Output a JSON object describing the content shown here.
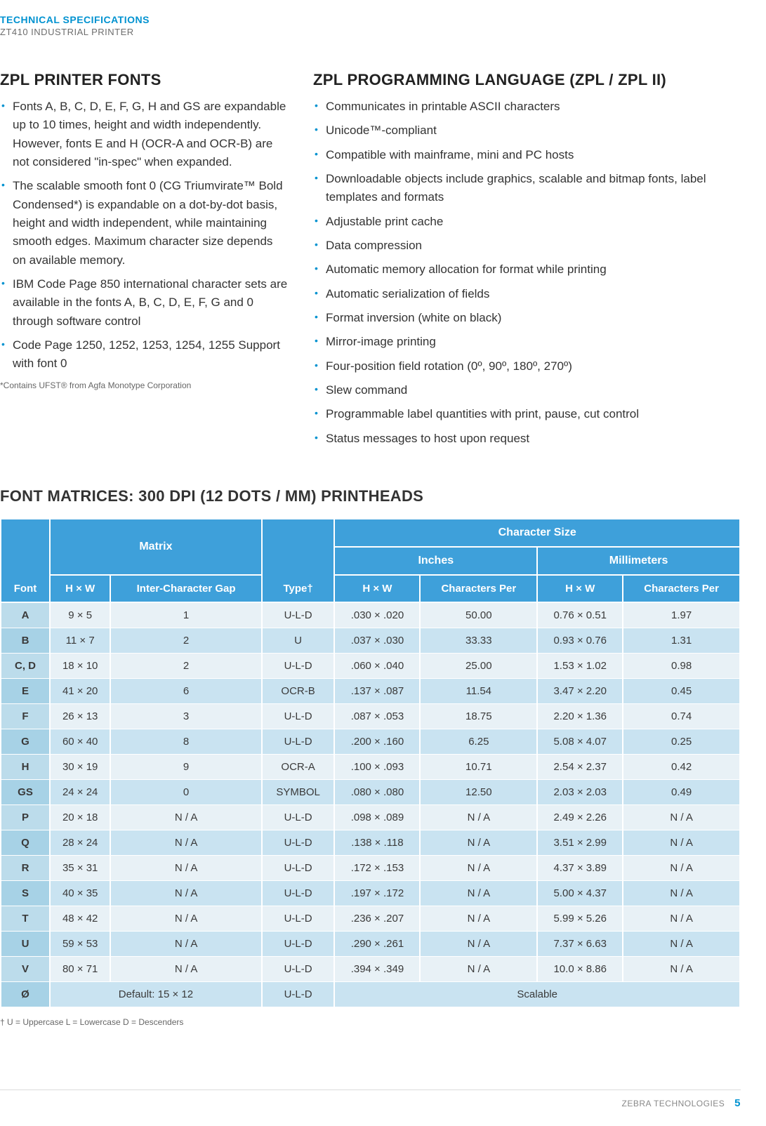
{
  "header": {
    "title": "TECHNICAL SPECIFICATIONS",
    "subtitle": "ZT410 INDUSTRIAL PRINTER"
  },
  "left_section": {
    "title": "ZPL PRINTER FONTS",
    "items": [
      "Fonts A, B, C, D, E, F, G, H and GS are expandable up to 10 times, height and width independently. However, fonts E and H (OCR-A and OCR-B) are not considered \"in-spec\" when expanded.",
      "The scalable smooth font 0 (CG Triumvirate™ Bold Condensed*) is expandable on a dot-by-dot basis, height and width independent, while maintaining smooth edges. Maximum character size depends on available memory.",
      "IBM Code Page 850 international character sets are available in the fonts A, B, C, D, E, F, G and 0 through software control",
      "Code Page 1250, 1252, 1253, 1254, 1255 Support with font 0"
    ],
    "footnote": "*Contains UFST® from Agfa Monotype Corporation"
  },
  "right_section": {
    "title": "ZPL PROGRAMMING LANGUAGE (ZPL / ZPL II)",
    "items": [
      "Communicates in printable ASCII characters",
      "Unicode™-compliant",
      "Compatible with mainframe, mini and PC hosts",
      "Downloadable objects include graphics, scalable and bitmap fonts, label templates and formats",
      "Adjustable print cache",
      "Data compression",
      "Automatic memory allocation for format while printing",
      "Automatic serialization of fields",
      "Format inversion (white on black)",
      "Mirror-image printing",
      "Four-position field rotation (0º, 90º, 180º, 270º)",
      "Slew command",
      "Programmable label quantities with print, pause, cut control",
      "Status messages to host upon request"
    ]
  },
  "matrices": {
    "title": "FONT MATRICES: 300 DPI (12 DOTS / MM) PRINTHEADS",
    "head": {
      "font": "Font",
      "matrix": "Matrix",
      "hxw": "H × W",
      "gap": "Inter-Character Gap",
      "type": "Type†",
      "charsize": "Character Size",
      "inches": "Inches",
      "mm": "Millimeters",
      "cper": "Characters Per"
    },
    "rows": [
      {
        "font": "A",
        "hxw": "9 × 5",
        "gap": "1",
        "type": "U-L-D",
        "in_hxw": ".030 × .020",
        "in_cper": "50.00",
        "mm_hxw": "0.76 × 0.51",
        "mm_cper": "1.97"
      },
      {
        "font": "B",
        "hxw": "11 × 7",
        "gap": "2",
        "type": "U",
        "in_hxw": ".037 × .030",
        "in_cper": "33.33",
        "mm_hxw": "0.93 × 0.76",
        "mm_cper": "1.31"
      },
      {
        "font": "C, D",
        "hxw": "18 × 10",
        "gap": "2",
        "type": "U-L-D",
        "in_hxw": ".060 × .040",
        "in_cper": "25.00",
        "mm_hxw": "1.53 × 1.02",
        "mm_cper": "0.98"
      },
      {
        "font": "E",
        "hxw": "41 × 20",
        "gap": "6",
        "type": "OCR-B",
        "in_hxw": ".137 × .087",
        "in_cper": "11.54",
        "mm_hxw": "3.47 × 2.20",
        "mm_cper": "0.45"
      },
      {
        "font": "F",
        "hxw": "26 × 13",
        "gap": "3",
        "type": "U-L-D",
        "in_hxw": ".087 × .053",
        "in_cper": "18.75",
        "mm_hxw": "2.20 × 1.36",
        "mm_cper": "0.74"
      },
      {
        "font": "G",
        "hxw": "60 × 40",
        "gap": "8",
        "type": "U-L-D",
        "in_hxw": ".200 × .160",
        "in_cper": "6.25",
        "mm_hxw": "5.08 × 4.07",
        "mm_cper": "0.25"
      },
      {
        "font": "H",
        "hxw": "30 × 19",
        "gap": "9",
        "type": "OCR-A",
        "in_hxw": ".100 × .093",
        "in_cper": "10.71",
        "mm_hxw": "2.54 × 2.37",
        "mm_cper": "0.42"
      },
      {
        "font": "GS",
        "hxw": "24 × 24",
        "gap": "0",
        "type": "SYMBOL",
        "in_hxw": ".080 × .080",
        "in_cper": "12.50",
        "mm_hxw": "2.03 × 2.03",
        "mm_cper": "0.49"
      },
      {
        "font": "P",
        "hxw": "20 × 18",
        "gap": "N / A",
        "type": "U-L-D",
        "in_hxw": ".098 × .089",
        "in_cper": "N / A",
        "mm_hxw": "2.49 × 2.26",
        "mm_cper": "N / A"
      },
      {
        "font": "Q",
        "hxw": "28 × 24",
        "gap": "N / A",
        "type": "U-L-D",
        "in_hxw": ".138 × .118",
        "in_cper": "N / A",
        "mm_hxw": "3.51 × 2.99",
        "mm_cper": "N / A"
      },
      {
        "font": "R",
        "hxw": "35 × 31",
        "gap": "N / A",
        "type": "U-L-D",
        "in_hxw": ".172 × .153",
        "in_cper": "N / A",
        "mm_hxw": "4.37 × 3.89",
        "mm_cper": "N / A"
      },
      {
        "font": "S",
        "hxw": "40 × 35",
        "gap": "N / A",
        "type": "U-L-D",
        "in_hxw": ".197 × .172",
        "in_cper": "N / A",
        "mm_hxw": "5.00 × 4.37",
        "mm_cper": "N / A"
      },
      {
        "font": "T",
        "hxw": "48 × 42",
        "gap": "N / A",
        "type": "U-L-D",
        "in_hxw": ".236 × .207",
        "in_cper": "N / A",
        "mm_hxw": "5.99 × 5.26",
        "mm_cper": "N / A"
      },
      {
        "font": "U",
        "hxw": "59 × 53",
        "gap": "N / A",
        "type": "U-L-D",
        "in_hxw": ".290 × .261",
        "in_cper": "N / A",
        "mm_hxw": "7.37 × 6.63",
        "mm_cper": "N / A"
      },
      {
        "font": "V",
        "hxw": "80 × 71",
        "gap": "N / A",
        "type": "U-L-D",
        "in_hxw": ".394 × .349",
        "in_cper": "N / A",
        "mm_hxw": "10.0 × 8.86",
        "mm_cper": "N / A"
      }
    ],
    "last_row": {
      "font": "Ø",
      "matrix_span": "Default: 15 × 12",
      "type": "U-L-D",
      "charsize_span": "Scalable"
    },
    "footnote": "†  U = Uppercase      L = Lowercase      D = Descenders"
  },
  "footer": {
    "brand": "ZEBRA TECHNOLOGIES",
    "page": "5"
  },
  "colors": {
    "accent": "#3ea0da",
    "brand_blue": "#0092d0",
    "row_light": "#e8f1f6",
    "row_mid": "#c9e3f1"
  }
}
